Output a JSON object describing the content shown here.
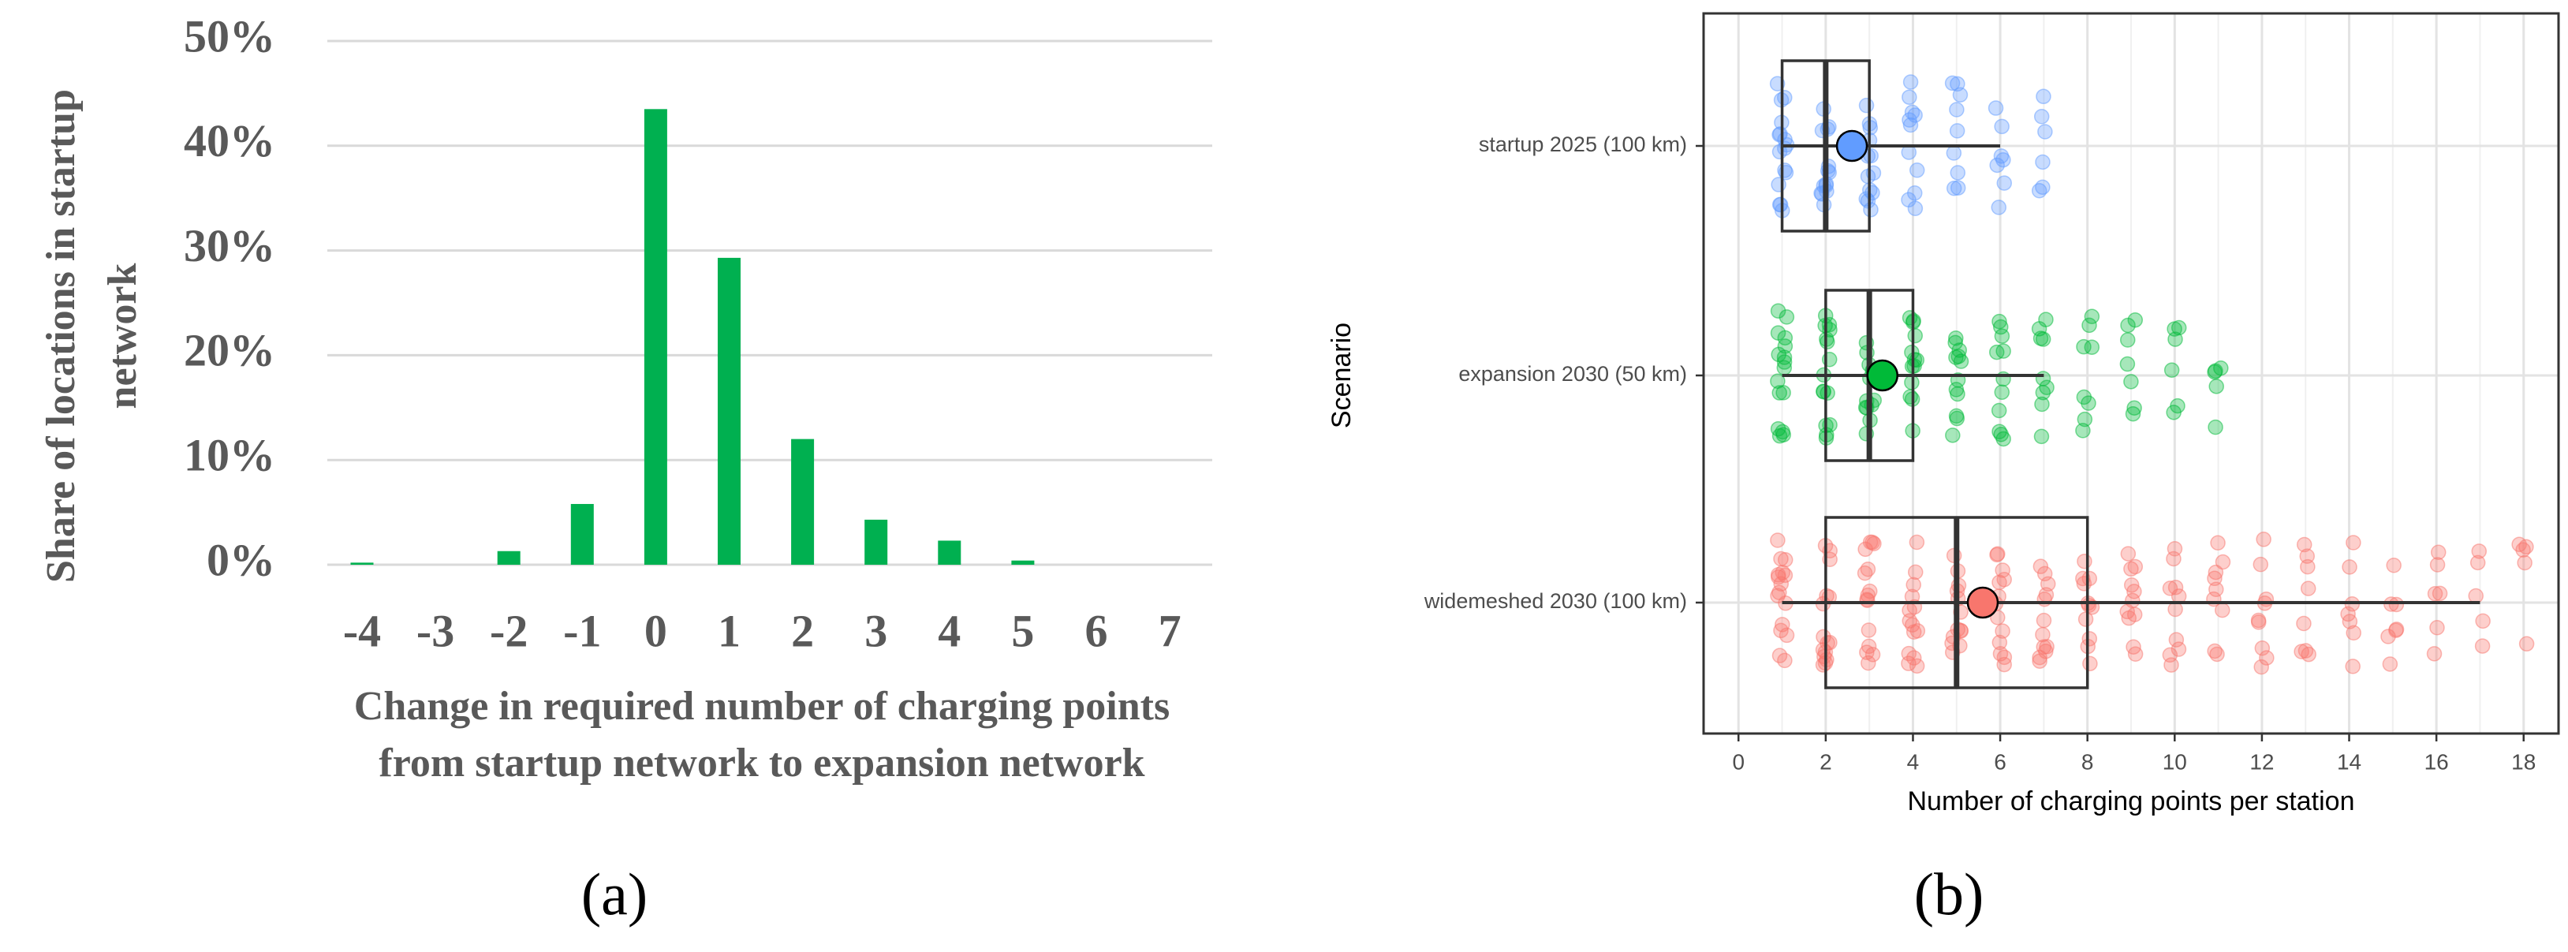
{
  "chart_data": [
    {
      "type": "bar",
      "caption": "(a)",
      "x_label": "Change in required number of charging points from startup network to expansion network",
      "y_label": "Share of locations in startup network",
      "categories": [
        "-4",
        "-3",
        "-2",
        "-1",
        "0",
        "1",
        "2",
        "3",
        "4",
        "5",
        "6",
        "7"
      ],
      "values": [
        0.2,
        0,
        1.3,
        5.8,
        43.5,
        29.3,
        12,
        4.3,
        2.3,
        0.4,
        0,
        0
      ],
      "color": "#00b050",
      "ylim": [
        0,
        50
      ],
      "yticks": [
        {
          "value": 0,
          "label": "0%"
        },
        {
          "value": 10,
          "label": "10%"
        },
        {
          "value": 20,
          "label": "20%"
        },
        {
          "value": 30,
          "label": "30%"
        },
        {
          "value": 40,
          "label": "40%"
        },
        {
          "value": 50,
          "label": "50%"
        }
      ],
      "grid": true
    },
    {
      "type": "box",
      "caption": "(b)",
      "x_label": "Number of charging points per station",
      "y_label": "Scenario",
      "categories": [
        "startup 2025 (100 km)",
        "expansion 2030 (50 km)",
        "widemeshed 2030 (100 km)"
      ],
      "boxes": [
        {
          "color": "#619cff",
          "min": 1,
          "q1": 1,
          "median": 2,
          "q3": 3,
          "max": 6,
          "mean": 2.6,
          "points": [
            1,
            2,
            3,
            4,
            5,
            6,
            7
          ]
        },
        {
          "color": "#00ba38",
          "min": 1,
          "q1": 2,
          "median": 3,
          "q3": 4,
          "max": 7,
          "mean": 3.3,
          "points": [
            1,
            2,
            3,
            4,
            5,
            6,
            7,
            8,
            9,
            10,
            11
          ]
        },
        {
          "color": "#f8766d",
          "min": 1,
          "q1": 2,
          "median": 5,
          "q3": 8,
          "max": 17,
          "mean": 5.6,
          "points": [
            1,
            2,
            3,
            4,
            5,
            6,
            7,
            8,
            9,
            10,
            11,
            12,
            13,
            14,
            15,
            16,
            17,
            18
          ]
        }
      ],
      "xlim": [
        -0.8,
        18.8
      ],
      "xticks": [
        0,
        2,
        4,
        6,
        8,
        10,
        12,
        14,
        16,
        18
      ],
      "grid": true
    }
  ]
}
